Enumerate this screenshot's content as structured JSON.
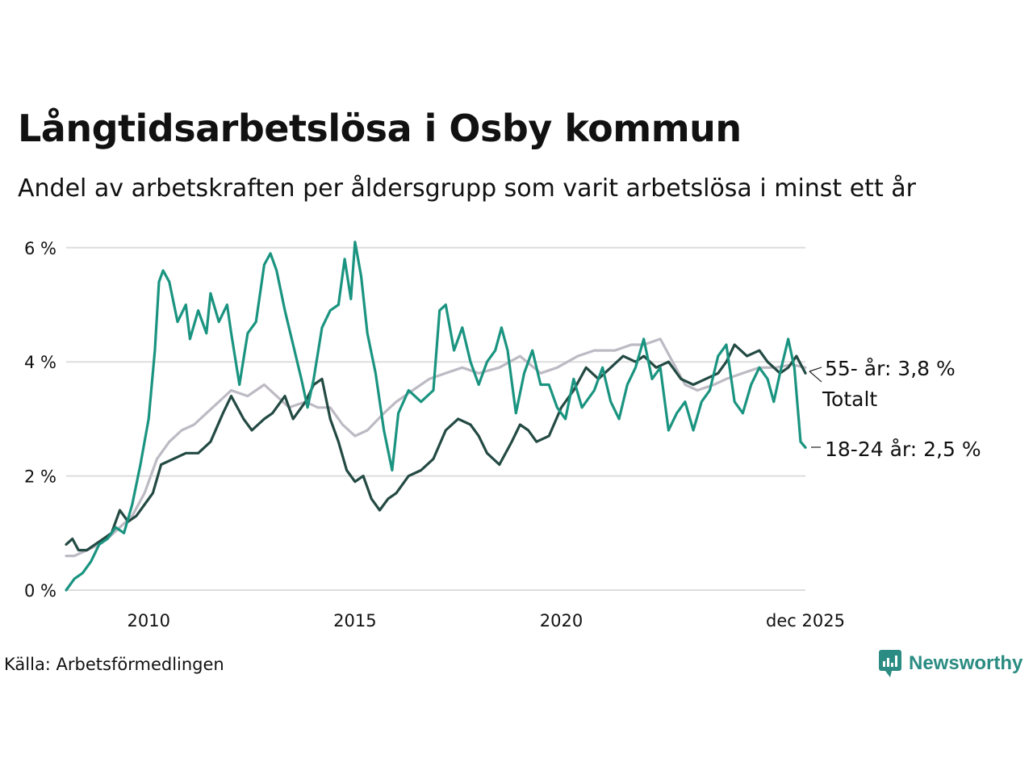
{
  "header": {
    "title": "Långtidsarbetslösa i Osby kommun",
    "subtitle": "Andel av arbetskraften per åldersgrupp som varit arbetslösa i minst ett år"
  },
  "footer": {
    "source": "Källa: Arbetsförmedlingen",
    "brand": "Newsworthy",
    "brand_icon": "newsworthy-logo-icon"
  },
  "colors": {
    "youth": "#1a9480",
    "senior": "#234a43",
    "total": "#bdbac4",
    "grid": "#dddddd",
    "brand": "#2a8c82"
  },
  "chart_data": {
    "type": "line",
    "title": "Långtidsarbetslösa i Osby kommun",
    "xlabel": "",
    "ylabel": "",
    "xlim": [
      2008.0,
      2025.917
    ],
    "ylim": [
      0,
      6.2
    ],
    "yticks": [
      0,
      2,
      4,
      6
    ],
    "ytick_labels": [
      "0 %",
      "2 %",
      "4 %",
      "6 %"
    ],
    "xticks": [
      2010,
      2015,
      2020,
      2025.917
    ],
    "xtick_labels": [
      "2010",
      "2015",
      "2020",
      "dec 2025"
    ],
    "grid": true,
    "series": [
      {
        "name": "Totalt",
        "key": "total",
        "label": "Totalt",
        "points": [
          [
            2008.0,
            0.6
          ],
          [
            2008.2,
            0.6
          ],
          [
            2008.5,
            0.7
          ],
          [
            2008.8,
            0.8
          ],
          [
            2009.0,
            0.9
          ],
          [
            2009.3,
            1.1
          ],
          [
            2009.6,
            1.3
          ],
          [
            2009.9,
            1.7
          ],
          [
            2010.2,
            2.3
          ],
          [
            2010.5,
            2.6
          ],
          [
            2010.8,
            2.8
          ],
          [
            2011.1,
            2.9
          ],
          [
            2011.4,
            3.1
          ],
          [
            2011.7,
            3.3
          ],
          [
            2012.0,
            3.5
          ],
          [
            2012.4,
            3.4
          ],
          [
            2012.8,
            3.6
          ],
          [
            2013.1,
            3.4
          ],
          [
            2013.4,
            3.2
          ],
          [
            2013.8,
            3.3
          ],
          [
            2014.1,
            3.2
          ],
          [
            2014.4,
            3.2
          ],
          [
            2014.7,
            2.9
          ],
          [
            2015.0,
            2.7
          ],
          [
            2015.3,
            2.8
          ],
          [
            2015.7,
            3.1
          ],
          [
            2016.0,
            3.3
          ],
          [
            2016.4,
            3.5
          ],
          [
            2016.8,
            3.7
          ],
          [
            2017.2,
            3.8
          ],
          [
            2017.6,
            3.9
          ],
          [
            2018.0,
            3.8
          ],
          [
            2018.5,
            3.9
          ],
          [
            2019.0,
            4.1
          ],
          [
            2019.5,
            3.8
          ],
          [
            2019.9,
            3.9
          ],
          [
            2020.4,
            4.1
          ],
          [
            2020.8,
            4.2
          ],
          [
            2021.3,
            4.2
          ],
          [
            2021.7,
            4.3
          ],
          [
            2022.0,
            4.3
          ],
          [
            2022.4,
            4.4
          ],
          [
            2022.7,
            4.0
          ],
          [
            2023.0,
            3.6
          ],
          [
            2023.3,
            3.5
          ],
          [
            2023.7,
            3.6
          ],
          [
            2024.0,
            3.7
          ],
          [
            2024.4,
            3.8
          ],
          [
            2024.8,
            3.9
          ],
          [
            2025.2,
            3.9
          ],
          [
            2025.6,
            3.95
          ],
          [
            2025.917,
            3.9
          ]
        ]
      },
      {
        "name": "55- år",
        "key": "senior",
        "label": "55- år: 3,8 %",
        "points": [
          [
            2008.0,
            0.8
          ],
          [
            2008.15,
            0.9
          ],
          [
            2008.3,
            0.7
          ],
          [
            2008.5,
            0.7
          ],
          [
            2008.7,
            0.8
          ],
          [
            2008.9,
            0.9
          ],
          [
            2009.1,
            1.0
          ],
          [
            2009.3,
            1.4
          ],
          [
            2009.5,
            1.2
          ],
          [
            2009.7,
            1.3
          ],
          [
            2009.9,
            1.5
          ],
          [
            2010.1,
            1.7
          ],
          [
            2010.3,
            2.2
          ],
          [
            2010.6,
            2.3
          ],
          [
            2010.9,
            2.4
          ],
          [
            2011.2,
            2.4
          ],
          [
            2011.5,
            2.6
          ],
          [
            2011.8,
            3.1
          ],
          [
            2012.0,
            3.4
          ],
          [
            2012.3,
            3.0
          ],
          [
            2012.5,
            2.8
          ],
          [
            2012.8,
            3.0
          ],
          [
            2013.0,
            3.1
          ],
          [
            2013.3,
            3.4
          ],
          [
            2013.5,
            3.0
          ],
          [
            2013.8,
            3.3
          ],
          [
            2014.0,
            3.6
          ],
          [
            2014.2,
            3.7
          ],
          [
            2014.4,
            3.0
          ],
          [
            2014.6,
            2.6
          ],
          [
            2014.8,
            2.1
          ],
          [
            2015.0,
            1.9
          ],
          [
            2015.2,
            2.0
          ],
          [
            2015.4,
            1.6
          ],
          [
            2015.6,
            1.4
          ],
          [
            2015.8,
            1.6
          ],
          [
            2016.0,
            1.7
          ],
          [
            2016.3,
            2.0
          ],
          [
            2016.6,
            2.1
          ],
          [
            2016.9,
            2.3
          ],
          [
            2017.2,
            2.8
          ],
          [
            2017.5,
            3.0
          ],
          [
            2017.8,
            2.9
          ],
          [
            2018.0,
            2.7
          ],
          [
            2018.2,
            2.4
          ],
          [
            2018.5,
            2.2
          ],
          [
            2018.8,
            2.6
          ],
          [
            2019.0,
            2.9
          ],
          [
            2019.2,
            2.8
          ],
          [
            2019.4,
            2.6
          ],
          [
            2019.7,
            2.7
          ],
          [
            2020.0,
            3.2
          ],
          [
            2020.3,
            3.5
          ],
          [
            2020.6,
            3.9
          ],
          [
            2020.9,
            3.7
          ],
          [
            2021.2,
            3.9
          ],
          [
            2021.5,
            4.1
          ],
          [
            2021.8,
            4.0
          ],
          [
            2022.0,
            4.1
          ],
          [
            2022.3,
            3.9
          ],
          [
            2022.6,
            4.0
          ],
          [
            2022.9,
            3.7
          ],
          [
            2023.2,
            3.6
          ],
          [
            2023.5,
            3.7
          ],
          [
            2023.8,
            3.8
          ],
          [
            2024.0,
            4.0
          ],
          [
            2024.2,
            4.3
          ],
          [
            2024.5,
            4.1
          ],
          [
            2024.8,
            4.2
          ],
          [
            2025.0,
            4.0
          ],
          [
            2025.3,
            3.8
          ],
          [
            2025.5,
            3.9
          ],
          [
            2025.7,
            4.1
          ],
          [
            2025.917,
            3.8
          ]
        ]
      },
      {
        "name": "18-24 år",
        "key": "youth",
        "label": "18-24 år: 2,5 %",
        "points": [
          [
            2008.0,
            0.0
          ],
          [
            2008.2,
            0.2
          ],
          [
            2008.4,
            0.3
          ],
          [
            2008.6,
            0.5
          ],
          [
            2008.8,
            0.8
          ],
          [
            2009.0,
            0.9
          ],
          [
            2009.2,
            1.1
          ],
          [
            2009.4,
            1.0
          ],
          [
            2009.6,
            1.5
          ],
          [
            2009.8,
            2.2
          ],
          [
            2010.0,
            3.0
          ],
          [
            2010.15,
            4.2
          ],
          [
            2010.25,
            5.4
          ],
          [
            2010.35,
            5.6
          ],
          [
            2010.5,
            5.4
          ],
          [
            2010.7,
            4.7
          ],
          [
            2010.9,
            5.0
          ],
          [
            2011.0,
            4.4
          ],
          [
            2011.2,
            4.9
          ],
          [
            2011.4,
            4.5
          ],
          [
            2011.5,
            5.2
          ],
          [
            2011.7,
            4.7
          ],
          [
            2011.9,
            5.0
          ],
          [
            2012.0,
            4.5
          ],
          [
            2012.2,
            3.6
          ],
          [
            2012.4,
            4.5
          ],
          [
            2012.6,
            4.7
          ],
          [
            2012.8,
            5.7
          ],
          [
            2012.95,
            5.9
          ],
          [
            2013.1,
            5.6
          ],
          [
            2013.3,
            4.9
          ],
          [
            2013.5,
            4.3
          ],
          [
            2013.7,
            3.7
          ],
          [
            2013.85,
            3.2
          ],
          [
            2014.0,
            3.7
          ],
          [
            2014.2,
            4.6
          ],
          [
            2014.4,
            4.9
          ],
          [
            2014.6,
            5.0
          ],
          [
            2014.75,
            5.8
          ],
          [
            2014.9,
            5.1
          ],
          [
            2015.0,
            6.1
          ],
          [
            2015.15,
            5.5
          ],
          [
            2015.3,
            4.5
          ],
          [
            2015.5,
            3.8
          ],
          [
            2015.7,
            2.8
          ],
          [
            2015.9,
            2.1
          ],
          [
            2016.05,
            3.1
          ],
          [
            2016.3,
            3.5
          ],
          [
            2016.6,
            3.3
          ],
          [
            2016.9,
            3.5
          ],
          [
            2017.05,
            4.9
          ],
          [
            2017.2,
            5.0
          ],
          [
            2017.4,
            4.2
          ],
          [
            2017.6,
            4.6
          ],
          [
            2017.8,
            4.0
          ],
          [
            2018.0,
            3.6
          ],
          [
            2018.2,
            4.0
          ],
          [
            2018.4,
            4.2
          ],
          [
            2018.55,
            4.6
          ],
          [
            2018.7,
            4.2
          ],
          [
            2018.9,
            3.1
          ],
          [
            2019.1,
            3.8
          ],
          [
            2019.3,
            4.2
          ],
          [
            2019.5,
            3.6
          ],
          [
            2019.7,
            3.6
          ],
          [
            2019.9,
            3.2
          ],
          [
            2020.1,
            3.0
          ],
          [
            2020.3,
            3.7
          ],
          [
            2020.5,
            3.2
          ],
          [
            2020.8,
            3.5
          ],
          [
            2021.0,
            3.9
          ],
          [
            2021.2,
            3.3
          ],
          [
            2021.4,
            3.0
          ],
          [
            2021.6,
            3.6
          ],
          [
            2021.8,
            3.9
          ],
          [
            2022.0,
            4.4
          ],
          [
            2022.2,
            3.7
          ],
          [
            2022.4,
            3.9
          ],
          [
            2022.6,
            2.8
          ],
          [
            2022.8,
            3.1
          ],
          [
            2023.0,
            3.3
          ],
          [
            2023.2,
            2.8
          ],
          [
            2023.4,
            3.3
          ],
          [
            2023.6,
            3.5
          ],
          [
            2023.8,
            4.1
          ],
          [
            2024.0,
            4.3
          ],
          [
            2024.2,
            3.3
          ],
          [
            2024.4,
            3.1
          ],
          [
            2024.6,
            3.6
          ],
          [
            2024.8,
            3.9
          ],
          [
            2025.0,
            3.7
          ],
          [
            2025.15,
            3.3
          ],
          [
            2025.3,
            3.8
          ],
          [
            2025.5,
            4.4
          ],
          [
            2025.65,
            3.9
          ],
          [
            2025.8,
            2.6
          ],
          [
            2025.917,
            2.5
          ]
        ]
      }
    ]
  }
}
